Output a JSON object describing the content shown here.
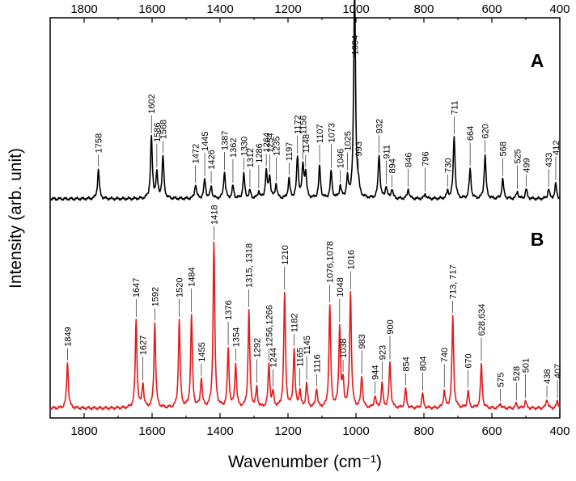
{
  "chart_data": {
    "type": "line",
    "xlabel": "Wavenumber (cm⁻¹)",
    "ylabel": "Intensity (arb. unit)",
    "xlim": [
      1900,
      400
    ],
    "x_reversed": true,
    "x_ticks": [
      1800,
      1600,
      1400,
      1200,
      1000,
      800,
      600,
      400
    ],
    "x_tick_labels": [
      "1800",
      "1600",
      "1400",
      "1200",
      "1000",
      "800",
      "600",
      "400"
    ],
    "ticks_on_top": true,
    "grid": false,
    "legend": "none",
    "series": [
      {
        "name": "A",
        "color": "#000000",
        "baseline": 0.08,
        "peaks": [
          {
            "x": 1758,
            "h": 0.12,
            "label": "1758"
          },
          {
            "x": 1602,
            "h": 0.25,
            "label": "1602"
          },
          {
            "x": 1586,
            "h": 0.1,
            "label": "1586"
          },
          {
            "x": 1568,
            "h": 0.17,
            "label": "1568"
          },
          {
            "x": 1472,
            "h": 0.06,
            "label": "1472"
          },
          {
            "x": 1445,
            "h": 0.08,
            "label": "1445"
          },
          {
            "x": 1426,
            "h": 0.05,
            "label": "1426"
          },
          {
            "x": 1387,
            "h": 0.11,
            "label": "1387"
          },
          {
            "x": 1362,
            "h": 0.05,
            "label": "1362"
          },
          {
            "x": 1330,
            "h": 0.1,
            "label": "1330"
          },
          {
            "x": 1312,
            "h": 0.03,
            "label": "1312"
          },
          {
            "x": 1286,
            "h": 0.03,
            "label": "1286"
          },
          {
            "x": 1264,
            "h": 0.11,
            "label": "1264"
          },
          {
            "x": 1254,
            "h": 0.09,
            "label": "1254"
          },
          {
            "x": 1235,
            "h": 0.06,
            "label": "1235"
          },
          {
            "x": 1197,
            "h": 0.08,
            "label": "1197"
          },
          {
            "x": 1172,
            "h": 0.17,
            "label": "1172"
          },
          {
            "x": 1156,
            "h": 0.13,
            "label": "1156"
          },
          {
            "x": 1148,
            "h": 0.1,
            "label": "1148"
          },
          {
            "x": 1107,
            "h": 0.13,
            "label": "1107"
          },
          {
            "x": 1073,
            "h": 0.11,
            "label": "1073"
          },
          {
            "x": 1046,
            "h": 0.05,
            "label": "1046"
          },
          {
            "x": 1025,
            "h": 0.08,
            "label": "1025"
          },
          {
            "x": 1004,
            "h": 0.86,
            "label": "1004"
          },
          {
            "x": 993,
            "h": 0.04,
            "label": "993"
          },
          {
            "x": 932,
            "h": 0.18,
            "label": "932"
          },
          {
            "x": 911,
            "h": 0.05,
            "label": "911"
          },
          {
            "x": 894,
            "h": 0.04,
            "label": "894"
          },
          {
            "x": 846,
            "h": 0.04,
            "label": "846"
          },
          {
            "x": 796,
            "h": 0.02,
            "label": "796"
          },
          {
            "x": 730,
            "h": 0.03,
            "label": "730"
          },
          {
            "x": 711,
            "h": 0.26,
            "label": "711"
          },
          {
            "x": 664,
            "h": 0.12,
            "label": "664"
          },
          {
            "x": 620,
            "h": 0.18,
            "label": "620"
          },
          {
            "x": 568,
            "h": 0.08,
            "label": "568"
          },
          {
            "x": 525,
            "h": 0.03,
            "label": "525"
          },
          {
            "x": 499,
            "h": 0.04,
            "label": "499"
          },
          {
            "x": 433,
            "h": 0.04,
            "label": "433"
          },
          {
            "x": 412,
            "h": 0.06,
            "label": "412"
          }
        ]
      },
      {
        "name": "B",
        "color": "#e31a1c",
        "baseline": 0.0,
        "peaks": [
          {
            "x": 1849,
            "h": 0.19,
            "label": "1849"
          },
          {
            "x": 1647,
            "h": 0.36,
            "label": "1647"
          },
          {
            "x": 1627,
            "h": 0.1,
            "label": "1627"
          },
          {
            "x": 1592,
            "h": 0.35,
            "label": "1592"
          },
          {
            "x": 1520,
            "h": 0.36,
            "label": "1520"
          },
          {
            "x": 1484,
            "h": 0.38,
            "label": "1484"
          },
          {
            "x": 1455,
            "h": 0.12,
            "label": "1455"
          },
          {
            "x": 1418,
            "h": 0.68,
            "label": "1418"
          },
          {
            "x": 1376,
            "h": 0.24,
            "label": "1376"
          },
          {
            "x": 1354,
            "h": 0.18,
            "label": "1354"
          },
          {
            "x": 1315,
            "h": 0.4,
            "label": "1315, 1318"
          },
          {
            "x": 1292,
            "h": 0.08,
            "label": "1292"
          },
          {
            "x": 1256,
            "h": 0.18,
            "label": "1256,1266"
          },
          {
            "x": 1244,
            "h": 0.06,
            "label": "1244"
          },
          {
            "x": 1210,
            "h": 0.47,
            "label": "1210"
          },
          {
            "x": 1182,
            "h": 0.24,
            "label": "1182"
          },
          {
            "x": 1165,
            "h": 0.07,
            "label": "1165"
          },
          {
            "x": 1145,
            "h": 0.1,
            "label": "1145"
          },
          {
            "x": 1116,
            "h": 0.08,
            "label": "1116"
          },
          {
            "x": 1077,
            "h": 0.42,
            "label": "1076,1078"
          },
          {
            "x": 1048,
            "h": 0.33,
            "label": "1048"
          },
          {
            "x": 1038,
            "h": 0.1,
            "label": "1038"
          },
          {
            "x": 1016,
            "h": 0.48,
            "label": "1016"
          },
          {
            "x": 983,
            "h": 0.13,
            "label": "983"
          },
          {
            "x": 944,
            "h": 0.05,
            "label": "944"
          },
          {
            "x": 923,
            "h": 0.1,
            "label": "923"
          },
          {
            "x": 900,
            "h": 0.19,
            "label": "900"
          },
          {
            "x": 854,
            "h": 0.08,
            "label": "854"
          },
          {
            "x": 804,
            "h": 0.06,
            "label": "804"
          },
          {
            "x": 740,
            "h": 0.07,
            "label": "740"
          },
          {
            "x": 715,
            "h": 0.38,
            "label": "713, 717"
          },
          {
            "x": 670,
            "h": 0.07,
            "label": "670"
          },
          {
            "x": 631,
            "h": 0.18,
            "label": "628,634"
          },
          {
            "x": 575,
            "h": 0.02,
            "label": "575"
          },
          {
            "x": 528,
            "h": 0.02,
            "label": "528"
          },
          {
            "x": 501,
            "h": 0.03,
            "label": "501"
          },
          {
            "x": 438,
            "h": 0.04,
            "label": "438"
          },
          {
            "x": 407,
            "h": 0.03,
            "label": "407"
          }
        ]
      }
    ]
  }
}
